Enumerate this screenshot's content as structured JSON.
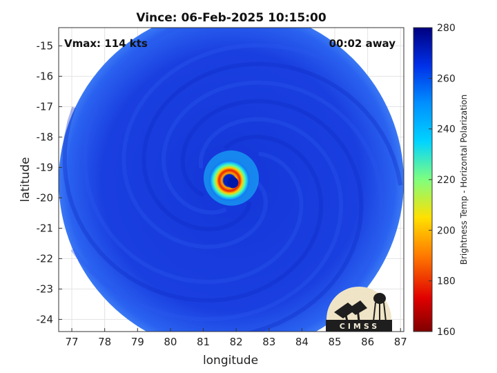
{
  "chart_data": {
    "type": "heatmap",
    "title": "Vince: 06-Feb-2025 10:15:00",
    "xlabel": "longitude",
    "ylabel": "latitude",
    "xlim": [
      76.6,
      87.1
    ],
    "ylim": [
      -24.4,
      -14.4
    ],
    "x_ticks": [
      "77",
      "78",
      "79",
      "80",
      "81",
      "82",
      "83",
      "84",
      "85",
      "86",
      "87"
    ],
    "y_ticks": [
      "-15",
      "-16",
      "-17",
      "-18",
      "-19",
      "-20",
      "-21",
      "-22",
      "-23",
      "-24"
    ],
    "grid": true,
    "annotations": {
      "vmax": "Vmax: 114 kts",
      "time_away": "00:02 away"
    },
    "colorbar": {
      "label": "Brightness Temp - Horizontal Polarization",
      "range": [
        160,
        280
      ],
      "ticks": [
        "280",
        "260",
        "240",
        "220",
        "200",
        "180",
        "160"
      ]
    },
    "storm_center": {
      "lon": 81.9,
      "lat": -19.5
    },
    "swath_center": {
      "lon": 81.85,
      "lat": -19.45
    },
    "background_temp": 262,
    "eyewall_min_temp": 180,
    "logo_text": "CIMSS"
  }
}
